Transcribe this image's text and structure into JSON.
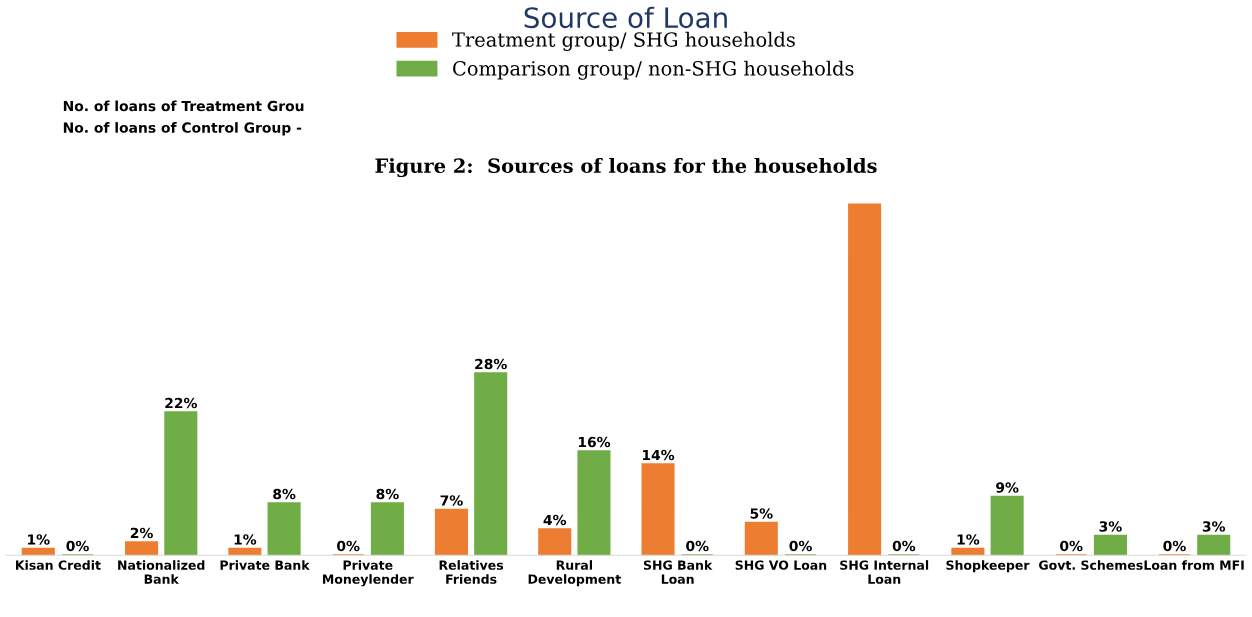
{
  "chart_data": {
    "type": "bar",
    "title": "Source of Loan",
    "subtitle": "Figure 2:  Sources of loans for the households",
    "annotations": [
      "No. of loans of Treatment Grou",
      "No. of loans of Control Group -"
    ],
    "categories": [
      "Kisan Credit",
      "Nationalized\nBank",
      "Private Bank",
      "Private\nMoneylender",
      "Relatives\nFriends",
      "Rural\nDevelopment",
      "SHG Bank\nLoan",
      "SHG VO Loan",
      "SHG Internal\nLoan",
      "Shopkeeper",
      "Govt. Schemes",
      "Loan from MFI"
    ],
    "series": [
      {
        "name": "Treatment group/ SHG households",
        "color": "#ed7d31",
        "values": [
          1,
          2,
          1,
          0,
          7,
          4,
          14,
          5,
          54,
          1,
          0,
          0
        ],
        "value_labels": [
          "1%",
          "2%",
          "1%",
          "0%",
          "7%",
          "4%",
          "14%",
          "5%",
          null,
          "1%",
          "0%",
          "0%"
        ]
      },
      {
        "name": "Comparison group/ non-SHG households",
        "color": "#70ad47",
        "values": [
          0,
          22,
          8,
          8,
          28,
          16,
          0,
          0,
          0,
          9,
          3,
          3
        ],
        "value_labels": [
          "0%",
          "22%",
          "8%",
          "8%",
          "28%",
          "16%",
          "0%",
          "0%",
          "0%",
          "9%",
          "3%",
          "3%"
        ]
      }
    ],
    "legend": "top",
    "grid": false
  }
}
